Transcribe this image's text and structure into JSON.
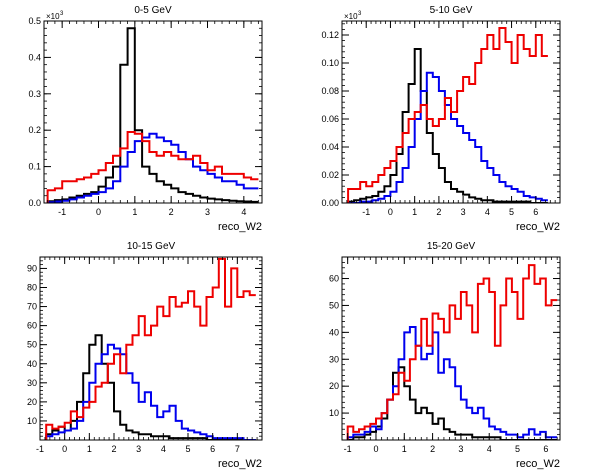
{
  "chart_data": [
    {
      "type": "histogram",
      "title": "0-5 GeV",
      "xlabel": "reco_W2",
      "ylabel": "",
      "y_multiplier": "×10",
      "y_multiplier_exp": "3",
      "xlim": [
        -1.5,
        4.5
      ],
      "ylim": [
        0,
        0.5
      ],
      "xticks": [
        -1,
        0,
        1,
        2,
        3,
        4
      ],
      "xtick_labels": [
        "-1",
        "0",
        "1",
        "2",
        "3",
        "4"
      ],
      "yticks": [
        0,
        0.1,
        0.2,
        0.3,
        0.4,
        0.5
      ],
      "ytick_labels": [
        "0.0",
        "0.1",
        "0.2",
        "0.3",
        "0.4",
        "0.5"
      ],
      "bin_edges": [
        -1.4,
        -1.2,
        -1.0,
        -0.8,
        -0.6,
        -0.4,
        -0.2,
        0.0,
        0.2,
        0.4,
        0.6,
        0.8,
        1.0,
        1.2,
        1.4,
        1.6,
        1.8,
        2.0,
        2.2,
        2.4,
        2.6,
        2.8,
        3.0,
        3.2,
        3.4,
        3.6,
        3.8,
        4.0,
        4.2,
        4.4
      ],
      "series": [
        {
          "color": "#000000",
          "values": [
            0.005,
            0.008,
            0.01,
            0.015,
            0.02,
            0.025,
            0.03,
            0.045,
            0.07,
            0.1,
            0.38,
            0.48,
            0.2,
            0.1,
            0.08,
            0.06,
            0.05,
            0.04,
            0.03,
            0.025,
            0.02,
            0.015,
            0.012,
            0.01,
            0.008,
            0.006,
            0.005,
            0.004,
            0.003
          ]
        },
        {
          "color": "#0000ee",
          "values": [
            0.002,
            0.004,
            0.006,
            0.01,
            0.015,
            0.02,
            0.025,
            0.03,
            0.04,
            0.06,
            0.1,
            0.14,
            0.17,
            0.18,
            0.19,
            0.18,
            0.17,
            0.16,
            0.14,
            0.12,
            0.1,
            0.09,
            0.08,
            0.07,
            0.06,
            0.06,
            0.05,
            0.04,
            0.04
          ]
        },
        {
          "color": "#ee0000",
          "values": [
            0.035,
            0.04,
            0.06,
            0.06,
            0.065,
            0.07,
            0.08,
            0.09,
            0.11,
            0.13,
            0.15,
            0.195,
            0.19,
            0.17,
            0.14,
            0.13,
            0.14,
            0.13,
            0.12,
            0.12,
            0.13,
            0.11,
            0.09,
            0.1,
            0.08,
            0.08,
            0.08,
            0.07,
            0.065
          ]
        }
      ]
    },
    {
      "type": "histogram",
      "title": "5-10 GeV",
      "xlabel": "reco_W2",
      "ylabel": "",
      "y_multiplier": "×10",
      "y_multiplier_exp": "3",
      "xlim": [
        -2,
        7
      ],
      "ylim": [
        0,
        0.13
      ],
      "xticks": [
        -1,
        0,
        1,
        2,
        3,
        4,
        5,
        6
      ],
      "xtick_labels": [
        "-1",
        "0",
        "1",
        "2",
        "3",
        "4",
        "5",
        "6"
      ],
      "yticks": [
        0,
        0.02,
        0.04,
        0.06,
        0.08,
        0.1,
        0.12
      ],
      "ytick_labels": [
        "0.00",
        "0.02",
        "0.04",
        "0.06",
        "0.08",
        "0.10",
        "0.12"
      ],
      "bin_edges": [
        -1.75,
        -1.5,
        -1.25,
        -1.0,
        -0.75,
        -0.5,
        -0.25,
        0.0,
        0.25,
        0.5,
        0.75,
        1.0,
        1.25,
        1.5,
        1.75,
        2.0,
        2.25,
        2.5,
        2.75,
        3.0,
        3.25,
        3.5,
        3.75,
        4.0,
        4.25,
        4.5,
        4.75,
        5.0,
        5.25,
        5.5,
        5.75,
        6.0,
        6.25,
        6.5
      ],
      "series": [
        {
          "color": "#000000",
          "values": [
            0.001,
            0.002,
            0.003,
            0.004,
            0.005,
            0.008,
            0.012,
            0.02,
            0.035,
            0.065,
            0.085,
            0.11,
            0.08,
            0.05,
            0.035,
            0.025,
            0.015,
            0.01,
            0.008,
            0.006,
            0.004,
            0.003,
            0.002,
            0.002,
            0.001,
            0.001,
            0.001,
            0.001,
            0.001,
            0.001,
            0.0,
            0.0,
            0.0
          ]
        },
        {
          "color": "#0000ee",
          "values": [
            0.0,
            0.0,
            0.001,
            0.001,
            0.002,
            0.003,
            0.005,
            0.008,
            0.015,
            0.025,
            0.04,
            0.06,
            0.08,
            0.093,
            0.09,
            0.08,
            0.07,
            0.06,
            0.055,
            0.05,
            0.045,
            0.04,
            0.03,
            0.025,
            0.02,
            0.015,
            0.012,
            0.01,
            0.008,
            0.005,
            0.004,
            0.003,
            0.002
          ]
        },
        {
          "color": "#ee0000",
          "values": [
            0.01,
            0.01,
            0.015,
            0.012,
            0.015,
            0.02,
            0.025,
            0.03,
            0.04,
            0.05,
            0.06,
            0.065,
            0.07,
            0.06,
            0.055,
            0.06,
            0.075,
            0.065,
            0.08,
            0.09,
            0.085,
            0.1,
            0.11,
            0.12,
            0.11,
            0.125,
            0.115,
            0.1,
            0.12,
            0.11,
            0.105,
            0.12,
            0.105
          ]
        }
      ]
    },
    {
      "type": "histogram",
      "title": "10-15 GeV",
      "xlabel": "reco_W2",
      "ylabel": "",
      "xlim": [
        -1,
        8
      ],
      "ylim": [
        0,
        96
      ],
      "xticks": [
        -1,
        0,
        1,
        2,
        3,
        4,
        5,
        6,
        7
      ],
      "xtick_labels": [
        "-1",
        "0",
        "1",
        "2",
        "3",
        "4",
        "5",
        "6",
        "7"
      ],
      "yticks": [
        10,
        20,
        30,
        40,
        50,
        60,
        70,
        80,
        90
      ],
      "ytick_labels": [
        "10",
        "20",
        "30",
        "40",
        "50",
        "60",
        "70",
        "80",
        "90"
      ],
      "bin_edges": [
        -0.75,
        -0.5,
        -0.25,
        0.0,
        0.25,
        0.5,
        0.75,
        1.0,
        1.25,
        1.5,
        1.75,
        2.0,
        2.25,
        2.5,
        2.75,
        3.0,
        3.25,
        3.5,
        3.75,
        4.0,
        4.25,
        4.5,
        4.75,
        5.0,
        5.25,
        5.5,
        5.75,
        6.0,
        6.25,
        6.5,
        6.75,
        7.0,
        7.25,
        7.5,
        7.75
      ],
      "series": [
        {
          "color": "#000000",
          "values": [
            3,
            5,
            7,
            5,
            10,
            20,
            35,
            50,
            55,
            40,
            30,
            15,
            8,
            5,
            4,
            3,
            3,
            2,
            2,
            2,
            1,
            1,
            1,
            1,
            1,
            1,
            0,
            0,
            0,
            0,
            0,
            0,
            0,
            0
          ]
        },
        {
          "color": "#0000ee",
          "values": [
            2,
            3,
            4,
            5,
            6,
            10,
            20,
            30,
            40,
            45,
            50,
            48,
            45,
            35,
            30,
            20,
            25,
            18,
            12,
            15,
            18,
            10,
            6,
            5,
            4,
            3,
            2,
            1,
            1,
            1,
            1,
            1,
            0,
            0
          ]
        },
        {
          "color": "#ee0000",
          "values": [
            8,
            6,
            7,
            9,
            15,
            12,
            17,
            20,
            28,
            30,
            40,
            45,
            35,
            50,
            55,
            65,
            55,
            60,
            70,
            65,
            75,
            70,
            72,
            78,
            70,
            60,
            75,
            80,
            95,
            70,
            90,
            75,
            78,
            76
          ]
        }
      ]
    },
    {
      "type": "histogram",
      "title": "15-20 GeV",
      "xlabel": "reco_W2",
      "ylabel": "",
      "xlim": [
        -1.2,
        6.5
      ],
      "ylim": [
        0,
        68
      ],
      "xticks": [
        -1,
        0,
        1,
        2,
        3,
        4,
        5,
        6
      ],
      "xtick_labels": [
        "-1",
        "0",
        "1",
        "2",
        "3",
        "4",
        "5",
        "6"
      ],
      "yticks": [
        10,
        20,
        30,
        40,
        50,
        60
      ],
      "ytick_labels": [
        "10",
        "20",
        "30",
        "40",
        "50",
        "60"
      ],
      "bin_edges": [
        -1.0,
        -0.8,
        -0.6,
        -0.4,
        -0.2,
        0.0,
        0.2,
        0.4,
        0.6,
        0.8,
        1.0,
        1.2,
        1.4,
        1.6,
        1.8,
        2.0,
        2.2,
        2.4,
        2.6,
        2.8,
        3.0,
        3.2,
        3.4,
        3.6,
        3.8,
        4.0,
        4.2,
        4.4,
        4.6,
        4.8,
        5.0,
        5.2,
        5.4,
        5.6,
        5.8,
        6.0,
        6.2,
        6.4
      ],
      "series": [
        {
          "color": "#000000",
          "values": [
            0,
            1,
            1,
            2,
            3,
            5,
            8,
            15,
            25,
            27,
            20,
            15,
            10,
            12,
            10,
            6,
            8,
            4,
            3,
            2,
            2,
            2,
            1,
            1,
            1,
            1,
            1,
            0,
            0,
            0,
            0,
            0,
            0,
            0,
            0,
            0,
            0
          ]
        },
        {
          "color": "#0000ee",
          "values": [
            1,
            2,
            2,
            3,
            5,
            4,
            10,
            15,
            20,
            30,
            40,
            42,
            35,
            30,
            32,
            40,
            25,
            30,
            27,
            20,
            15,
            12,
            10,
            12,
            8,
            5,
            4,
            3,
            2,
            2,
            1,
            2,
            4,
            2,
            3,
            1,
            1
          ]
        },
        {
          "color": "#ee0000",
          "values": [
            5,
            3,
            4,
            5,
            6,
            8,
            10,
            15,
            17,
            25,
            22,
            30,
            35,
            45,
            35,
            47,
            45,
            40,
            50,
            45,
            55,
            50,
            40,
            58,
            60,
            55,
            35,
            50,
            60,
            55,
            45,
            60,
            65,
            58,
            60,
            50,
            52
          ]
        }
      ]
    }
  ]
}
